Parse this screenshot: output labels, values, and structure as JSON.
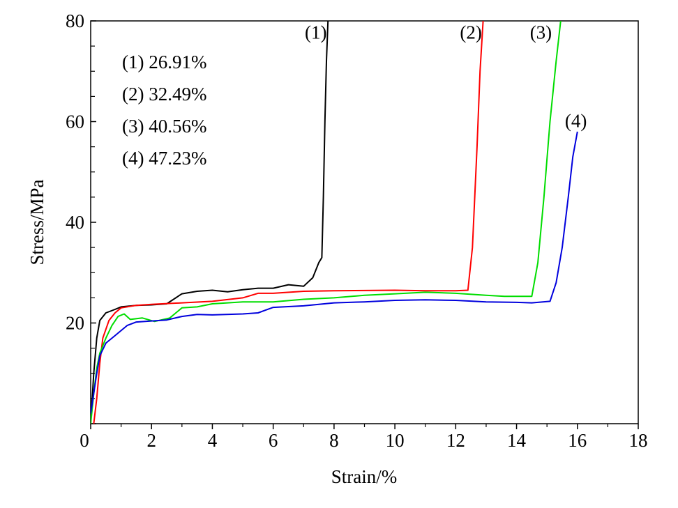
{
  "chart_data": {
    "type": "line",
    "xlabel": "Strain/%",
    "ylabel": "Stress/MPa",
    "xlim": [
      0,
      18
    ],
    "ylim": [
      0,
      80
    ],
    "x_ticks": [
      "0",
      "2",
      "4",
      "6",
      "8",
      "10",
      "12",
      "14",
      "16",
      "18"
    ],
    "y_ticks": [
      "0",
      "20",
      "40",
      "60",
      "80"
    ],
    "grid": false,
    "legend_position": "top-left",
    "legend": [
      "(1) 26.91%",
      "(2) 32.49%",
      "(3) 40.56%",
      "(4) 47.23%"
    ],
    "series": [
      {
        "name": "(1)",
        "color": "#000000",
        "points": [
          [
            0,
            0
          ],
          [
            0.05,
            5
          ],
          [
            0.1,
            10
          ],
          [
            0.2,
            17
          ],
          [
            0.3,
            20.5
          ],
          [
            0.5,
            22
          ],
          [
            0.8,
            22.7
          ],
          [
            1.0,
            23.2
          ],
          [
            1.5,
            23.5
          ],
          [
            2.0,
            23.6
          ],
          [
            2.5,
            23.8
          ],
          [
            3.0,
            25.8
          ],
          [
            3.5,
            26.3
          ],
          [
            4.0,
            26.5
          ],
          [
            4.5,
            26.2
          ],
          [
            5.0,
            26.6
          ],
          [
            5.5,
            26.9
          ],
          [
            6.0,
            26.9
          ],
          [
            6.5,
            27.6
          ],
          [
            7.0,
            27.3
          ],
          [
            7.3,
            29
          ],
          [
            7.5,
            32
          ],
          [
            7.6,
            33
          ],
          [
            7.65,
            45
          ],
          [
            7.7,
            60
          ],
          [
            7.75,
            72
          ],
          [
            7.8,
            80
          ]
        ]
      },
      {
        "name": "(2)",
        "color": "#ff0000",
        "points": [
          [
            0.1,
            0
          ],
          [
            0.2,
            5
          ],
          [
            0.3,
            12
          ],
          [
            0.4,
            17
          ],
          [
            0.6,
            20.5
          ],
          [
            0.8,
            22
          ],
          [
            1.0,
            23
          ],
          [
            1.5,
            23.5
          ],
          [
            2.0,
            23.7
          ],
          [
            3.0,
            24
          ],
          [
            4.0,
            24.3
          ],
          [
            5.0,
            25
          ],
          [
            5.5,
            25.9
          ],
          [
            6.0,
            25.9
          ],
          [
            7.0,
            26.3
          ],
          [
            8.0,
            26.4
          ],
          [
            10.0,
            26.5
          ],
          [
            11.0,
            26.4
          ],
          [
            12.0,
            26.4
          ],
          [
            12.4,
            26.5
          ],
          [
            12.55,
            35
          ],
          [
            12.7,
            55
          ],
          [
            12.8,
            70
          ],
          [
            12.9,
            80
          ]
        ]
      },
      {
        "name": "(3)",
        "color": "#00dd00",
        "points": [
          [
            0,
            0
          ],
          [
            0.1,
            6
          ],
          [
            0.2,
            11
          ],
          [
            0.3,
            14
          ],
          [
            0.5,
            17
          ],
          [
            0.7,
            19.5
          ],
          [
            0.9,
            21.3
          ],
          [
            1.1,
            21.8
          ],
          [
            1.3,
            20.7
          ],
          [
            1.7,
            21
          ],
          [
            2.1,
            20.3
          ],
          [
            2.6,
            21
          ],
          [
            3.0,
            23
          ],
          [
            3.5,
            23.2
          ],
          [
            4.0,
            23.8
          ],
          [
            5.0,
            24.2
          ],
          [
            6.0,
            24.2
          ],
          [
            7.0,
            24.7
          ],
          [
            8.0,
            25
          ],
          [
            9.0,
            25.5
          ],
          [
            10.0,
            25.8
          ],
          [
            11.0,
            26.1
          ],
          [
            12.0,
            25.9
          ],
          [
            13.0,
            25.5
          ],
          [
            13.6,
            25.3
          ],
          [
            14.0,
            25.3
          ],
          [
            14.5,
            25.3
          ],
          [
            14.7,
            32
          ],
          [
            14.9,
            45
          ],
          [
            15.1,
            60
          ],
          [
            15.3,
            72
          ],
          [
            15.45,
            80
          ]
        ]
      },
      {
        "name": "(4)",
        "color": "#0000dd",
        "points": [
          [
            0,
            2
          ],
          [
            0.1,
            6
          ],
          [
            0.2,
            10
          ],
          [
            0.3,
            13.5
          ],
          [
            0.5,
            16
          ],
          [
            0.8,
            17.5
          ],
          [
            1.2,
            19.5
          ],
          [
            1.5,
            20.2
          ],
          [
            2.0,
            20.4
          ],
          [
            2.5,
            20.6
          ],
          [
            3.0,
            21.3
          ],
          [
            3.5,
            21.7
          ],
          [
            4.0,
            21.6
          ],
          [
            5.0,
            21.8
          ],
          [
            5.5,
            22
          ],
          [
            6.0,
            23.1
          ],
          [
            7.0,
            23.4
          ],
          [
            8.0,
            24
          ],
          [
            9.0,
            24.2
          ],
          [
            10.0,
            24.5
          ],
          [
            11.0,
            24.6
          ],
          [
            12.0,
            24.5
          ],
          [
            13.0,
            24.2
          ],
          [
            14.0,
            24.1
          ],
          [
            14.5,
            24
          ],
          [
            15.1,
            24.3
          ],
          [
            15.3,
            28
          ],
          [
            15.5,
            35
          ],
          [
            15.7,
            45
          ],
          [
            15.85,
            53
          ],
          [
            16.0,
            58
          ]
        ]
      }
    ],
    "curve_labels": [
      {
        "text": "(1)",
        "x": 7.4,
        "y": 76.5
      },
      {
        "text": "(2)",
        "x": 12.5,
        "y": 76.5
      },
      {
        "text": "(3)",
        "x": 14.8,
        "y": 76.5
      },
      {
        "text": "(4)",
        "x": 15.95,
        "y": 58.9
      }
    ]
  }
}
